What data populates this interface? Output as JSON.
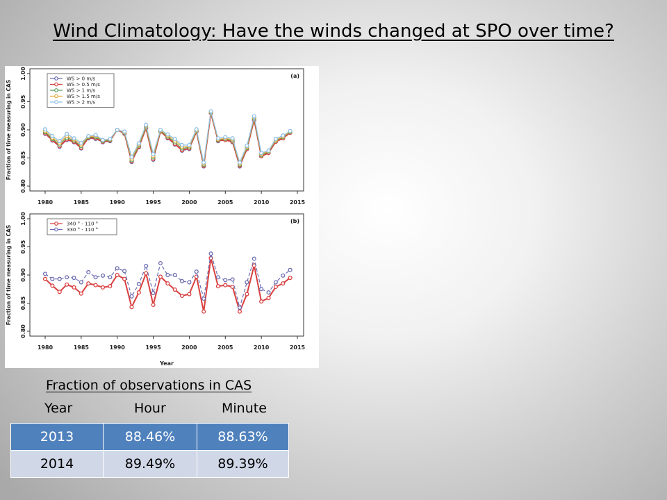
{
  "slide": {
    "title": "Wind Climatology: Have the winds changed at SPO over time?"
  },
  "figure": {
    "ylabel": "Fraction of time measuring in CAS",
    "xlabel": "Year",
    "colors": {
      "red": "#d9403f",
      "blue": "#6a6bb2",
      "light_blue": "#8fc0e6",
      "green": "#5c9e5c",
      "orange": "#e6a93a"
    }
  },
  "chart_data": [
    {
      "type": "line",
      "panel_label": "(a)",
      "ylabel": "Fraction of time measuring in CAS",
      "xlabel": "",
      "xlim": [
        1980,
        2015
      ],
      "ylim": [
        0.8,
        1.0
      ],
      "x_ticks": [
        "1980",
        "1985",
        "1990",
        "1995",
        "2000",
        "2005",
        "2010",
        "2015"
      ],
      "y_ticks": [
        "0.80",
        "0.85",
        "0.90",
        "0.95",
        "1.00"
      ],
      "legend_position": "top-left",
      "legend": [
        "WS > 0 m/s",
        "WS > 0.5 m/s",
        "WS > 1 m/s",
        "WS > 1.5 m/s",
        "WS > 2 m/s"
      ],
      "x": [
        1980,
        1981,
        1982,
        1983,
        1984,
        1985,
        1986,
        1987,
        1988,
        1989,
        1990,
        1991,
        1992,
        1993,
        1994,
        1995,
        1996,
        1997,
        1998,
        1999,
        2000,
        2001,
        2002,
        2003,
        2004,
        2005,
        2006,
        2007,
        2008,
        2009,
        2010,
        2011,
        2012,
        2013,
        2014
      ],
      "series": [
        {
          "name": "WS > 0 m/s",
          "color": "blue",
          "values": [
            0.893,
            0.881,
            0.87,
            0.882,
            0.878,
            0.867,
            0.885,
            0.884,
            0.878,
            0.88,
            0.9,
            0.893,
            0.843,
            0.869,
            0.903,
            0.847,
            0.897,
            0.885,
            0.874,
            0.863,
            0.866,
            0.897,
            0.835,
            0.93,
            0.88,
            0.882,
            0.878,
            0.835,
            0.866,
            0.917,
            0.853,
            0.859,
            0.879,
            0.885,
            0.895
          ]
        },
        {
          "name": "WS > 0.5 m/s",
          "color": "red",
          "values": [
            0.894,
            0.882,
            0.871,
            0.883,
            0.879,
            0.868,
            0.886,
            0.885,
            0.879,
            0.881,
            0.9,
            0.894,
            0.844,
            0.87,
            0.903,
            0.848,
            0.897,
            0.886,
            0.875,
            0.864,
            0.867,
            0.897,
            0.836,
            0.93,
            0.881,
            0.882,
            0.879,
            0.836,
            0.866,
            0.918,
            0.853,
            0.859,
            0.879,
            0.885,
            0.895
          ]
        },
        {
          "name": "WS > 1 m/s",
          "color": "green",
          "values": [
            0.896,
            0.884,
            0.874,
            0.886,
            0.881,
            0.871,
            0.887,
            0.887,
            0.88,
            0.882,
            0.9,
            0.895,
            0.846,
            0.872,
            0.905,
            0.851,
            0.898,
            0.888,
            0.878,
            0.867,
            0.869,
            0.898,
            0.838,
            0.931,
            0.882,
            0.884,
            0.881,
            0.838,
            0.868,
            0.92,
            0.855,
            0.861,
            0.881,
            0.887,
            0.896
          ]
        },
        {
          "name": "WS > 1.5 m/s",
          "color": "orange",
          "values": [
            0.898,
            0.886,
            0.877,
            0.889,
            0.883,
            0.874,
            0.888,
            0.889,
            0.881,
            0.883,
            0.9,
            0.896,
            0.849,
            0.874,
            0.907,
            0.854,
            0.899,
            0.89,
            0.881,
            0.87,
            0.871,
            0.899,
            0.84,
            0.932,
            0.883,
            0.885,
            0.883,
            0.84,
            0.87,
            0.922,
            0.857,
            0.862,
            0.882,
            0.888,
            0.897
          ]
        },
        {
          "name": "WS > 2 m/s",
          "color": "light_blue",
          "values": [
            0.901,
            0.889,
            0.88,
            0.893,
            0.885,
            0.877,
            0.889,
            0.891,
            0.882,
            0.884,
            0.9,
            0.897,
            0.852,
            0.876,
            0.909,
            0.857,
            0.9,
            0.892,
            0.884,
            0.873,
            0.873,
            0.901,
            0.842,
            0.933,
            0.885,
            0.887,
            0.885,
            0.842,
            0.872,
            0.924,
            0.859,
            0.863,
            0.884,
            0.89,
            0.898
          ]
        }
      ]
    },
    {
      "type": "line",
      "panel_label": "(b)",
      "ylabel": "Fraction of time measuring in CAS",
      "xlabel": "Year",
      "xlim": [
        1980,
        2015
      ],
      "ylim": [
        0.8,
        1.0
      ],
      "x_ticks": [
        "1980",
        "1985",
        "1990",
        "1995",
        "2000",
        "2005",
        "2010",
        "2015"
      ],
      "y_ticks": [
        "0.80",
        "0.85",
        "0.90",
        "0.95",
        "1.00"
      ],
      "legend_position": "top-left",
      "legend": [
        "340 ° - 110 °",
        "330 ° - 110 °"
      ],
      "x": [
        1980,
        1981,
        1982,
        1983,
        1984,
        1985,
        1986,
        1987,
        1988,
        1989,
        1990,
        1991,
        1992,
        1993,
        1994,
        1995,
        1996,
        1997,
        1998,
        1999,
        2000,
        2001,
        2002,
        2003,
        2004,
        2005,
        2006,
        2007,
        2008,
        2009,
        2010,
        2011,
        2012,
        2013,
        2014
      ],
      "series": [
        {
          "name": "340 ° - 110 °",
          "color": "red",
          "values": [
            0.893,
            0.881,
            0.87,
            0.883,
            0.878,
            0.867,
            0.885,
            0.882,
            0.878,
            0.88,
            0.9,
            0.893,
            0.843,
            0.869,
            0.903,
            0.847,
            0.897,
            0.885,
            0.874,
            0.863,
            0.866,
            0.897,
            0.835,
            0.93,
            0.88,
            0.882,
            0.879,
            0.835,
            0.866,
            0.917,
            0.853,
            0.859,
            0.879,
            0.885,
            0.895
          ]
        },
        {
          "name": "330 ° - 110 °",
          "color": "blue",
          "values": [
            0.902,
            0.893,
            0.893,
            0.896,
            0.895,
            0.887,
            0.905,
            0.896,
            0.899,
            0.896,
            0.912,
            0.907,
            0.862,
            0.884,
            0.916,
            0.868,
            0.921,
            0.9,
            0.9,
            0.889,
            0.887,
            0.906,
            0.858,
            0.938,
            0.896,
            0.891,
            0.892,
            0.842,
            0.887,
            0.929,
            0.875,
            0.869,
            0.887,
            0.899,
            0.909
          ]
        }
      ]
    }
  ],
  "table": {
    "caption": "Fraction of observations in CAS",
    "headers": [
      "Year",
      "Hour",
      "Minute"
    ],
    "rows": [
      [
        "2013",
        "88.46%",
        "88.63%"
      ],
      [
        "2014",
        "89.49%",
        "89.39%"
      ]
    ]
  }
}
